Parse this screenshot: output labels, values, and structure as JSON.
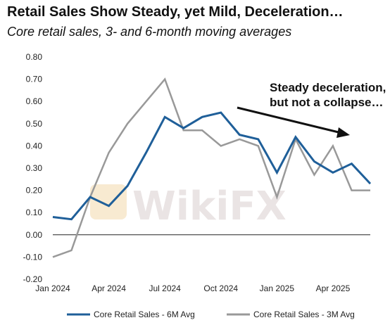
{
  "chart_data": {
    "type": "line",
    "title": "Retail Sales Show Steady, yet Mild, Deceleration…",
    "subtitle": "Core retail sales, 3- and 6-month moving averages",
    "x_tick_labels": [
      "Jan 2024",
      "Apr 2024",
      "Jul 2024",
      "Oct 2024",
      "Jan 2025",
      "Apr 2025"
    ],
    "y_tick_labels": [
      "0.80",
      "0.70",
      "0.60",
      "0.50",
      "0.40",
      "0.30",
      "0.20",
      "0.10",
      "0.00",
      "-0.10",
      "-0.20"
    ],
    "ylim": [
      -0.2,
      0.8
    ],
    "x": [
      "Jan 2024",
      "Feb 2024",
      "Mar 2024",
      "Apr 2024",
      "May 2024",
      "Jun 2024",
      "Jul 2024",
      "Aug 2024",
      "Sep 2024",
      "Oct 2024",
      "Nov 2024",
      "Dec 2024",
      "Jan 2025",
      "Feb 2025",
      "Mar 2025",
      "Apr 2025",
      "May 2025",
      "Jun 2025"
    ],
    "series": [
      {
        "name": "Core Retail Sales - 6M Avg",
        "color": "#1f5f99",
        "values": [
          0.08,
          0.07,
          0.17,
          0.13,
          0.22,
          0.37,
          0.53,
          0.48,
          0.53,
          0.55,
          0.45,
          0.43,
          0.28,
          0.44,
          0.33,
          0.28,
          0.32,
          0.23
        ]
      },
      {
        "name": "Core Retail Sales - 3M Avg",
        "color": "#999999",
        "values": [
          -0.1,
          -0.07,
          0.17,
          0.37,
          0.5,
          0.6,
          0.7,
          0.47,
          0.47,
          0.4,
          0.43,
          0.4,
          0.17,
          0.43,
          0.27,
          0.4,
          0.2,
          0.2
        ]
      }
    ],
    "annotation": {
      "lines": [
        "Steady deceleration,",
        "but not a collapse…"
      ],
      "arrow": true
    },
    "zero_line": true,
    "grid": false,
    "legend_position": "bottom"
  },
  "watermark": {
    "text": "WikiFX"
  }
}
